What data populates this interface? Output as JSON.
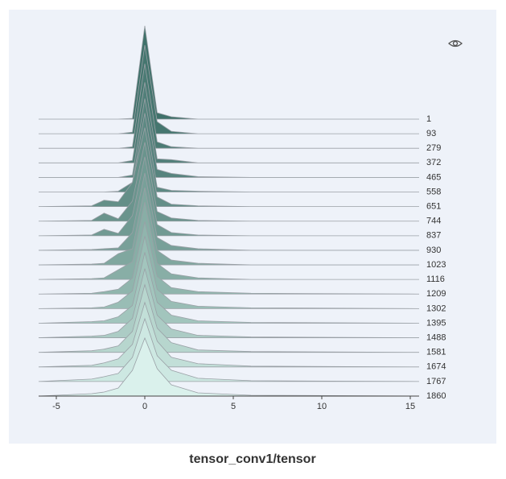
{
  "chart_data": {
    "type": "ridgeline",
    "title": "tensor_conv1/tensor",
    "x": [
      -6,
      -3,
      -2.3,
      -1.5,
      -0.7,
      0,
      0.7,
      1.5,
      3,
      6,
      15.5
    ],
    "xlim": [
      -6,
      15.5
    ],
    "xticks": [
      -5,
      0,
      5,
      10,
      15
    ],
    "series": [
      {
        "name": "1",
        "color": "#3f716a",
        "values": [
          0,
          0,
          0,
          0,
          1,
          116,
          8,
          3,
          0,
          0,
          0
        ]
      },
      {
        "name": "93",
        "color": "#45766f",
        "values": [
          0,
          0,
          0,
          0,
          2,
          110,
          15,
          3,
          0,
          0,
          0
        ]
      },
      {
        "name": "279",
        "color": "#4b7b74",
        "values": [
          0,
          0,
          0,
          0,
          2,
          105,
          8,
          2,
          0,
          0,
          0
        ]
      },
      {
        "name": "372",
        "color": "#517f79",
        "values": [
          0,
          0,
          0,
          0,
          3,
          100,
          5,
          4,
          0,
          0,
          0
        ]
      },
      {
        "name": "465",
        "color": "#57847e",
        "values": [
          0,
          0,
          0,
          0,
          3,
          98,
          10,
          5,
          1,
          0,
          0
        ]
      },
      {
        "name": "558",
        "color": "#5d8983",
        "values": [
          0,
          0,
          0,
          1,
          12,
          98,
          6,
          2,
          1,
          0,
          0
        ]
      },
      {
        "name": "651",
        "color": "#648f88",
        "values": [
          0,
          1,
          8,
          6,
          30,
          98,
          12,
          3,
          1,
          0,
          0
        ]
      },
      {
        "name": "744",
        "color": "#6a948d",
        "values": [
          0,
          1,
          10,
          3,
          25,
          98,
          12,
          4,
          1,
          0,
          0
        ]
      },
      {
        "name": "837",
        "color": "#719a93",
        "values": [
          0,
          1,
          8,
          3,
          25,
          98,
          14,
          4,
          1,
          0,
          0
        ]
      },
      {
        "name": "930",
        "color": "#78a099",
        "values": [
          0,
          1,
          2,
          3,
          22,
          96,
          16,
          6,
          2,
          0,
          0
        ]
      },
      {
        "name": "1023",
        "color": "#80a79f",
        "values": [
          0,
          1,
          2,
          14,
          20,
          96,
          18,
          6,
          2,
          0,
          0
        ]
      },
      {
        "name": "1116",
        "color": "#88aea6",
        "values": [
          0,
          1,
          2,
          12,
          22,
          96,
          20,
          7,
          2,
          0,
          0
        ]
      },
      {
        "name": "1209",
        "color": "#90b5ad",
        "values": [
          0,
          1,
          3,
          6,
          20,
          90,
          22,
          8,
          3,
          1,
          0
        ]
      },
      {
        "name": "1302",
        "color": "#99bdb5",
        "values": [
          0,
          1,
          2,
          8,
          22,
          90,
          24,
          9,
          3,
          1,
          0
        ]
      },
      {
        "name": "1395",
        "color": "#a2c5bd",
        "values": [
          0,
          2,
          3,
          8,
          22,
          88,
          26,
          10,
          3,
          1,
          0
        ]
      },
      {
        "name": "1488",
        "color": "#acccc5",
        "values": [
          0,
          2,
          3,
          8,
          24,
          86,
          28,
          11,
          3,
          1,
          0
        ]
      },
      {
        "name": "1581",
        "color": "#b7d6ce",
        "values": [
          0,
          2,
          4,
          8,
          26,
          84,
          30,
          12,
          3,
          1,
          0
        ]
      },
      {
        "name": "1674",
        "color": "#c2dfd8",
        "values": [
          0,
          2,
          5,
          10,
          28,
          80,
          32,
          12,
          4,
          1,
          0
        ]
      },
      {
        "name": "1767",
        "color": "#cde8e2",
        "values": [
          0,
          3,
          6,
          10,
          30,
          78,
          32,
          14,
          4,
          1,
          0
        ]
      },
      {
        "name": "1860",
        "color": "#daf1ec",
        "values": [
          0,
          3,
          5,
          10,
          32,
          72,
          34,
          14,
          4,
          1,
          0
        ]
      }
    ]
  }
}
